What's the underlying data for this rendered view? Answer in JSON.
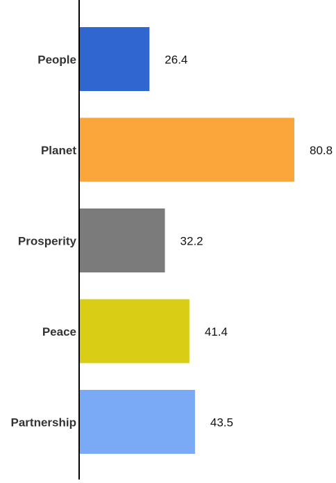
{
  "chart_data": {
    "type": "bar",
    "orientation": "horizontal",
    "title": "",
    "xlabel": "",
    "ylabel": "",
    "categories": [
      "People",
      "Planet",
      "Prosperity",
      "Peace",
      "Partnership"
    ],
    "values": [
      26.4,
      80.8,
      32.2,
      41.4,
      43.5
    ],
    "colors": [
      "#2f66d0",
      "#faa63a",
      "#7b7b7b",
      "#dacd16",
      "#7aaaf6"
    ],
    "xlim": [
      0,
      92
    ],
    "grid": false,
    "legend": "none"
  }
}
